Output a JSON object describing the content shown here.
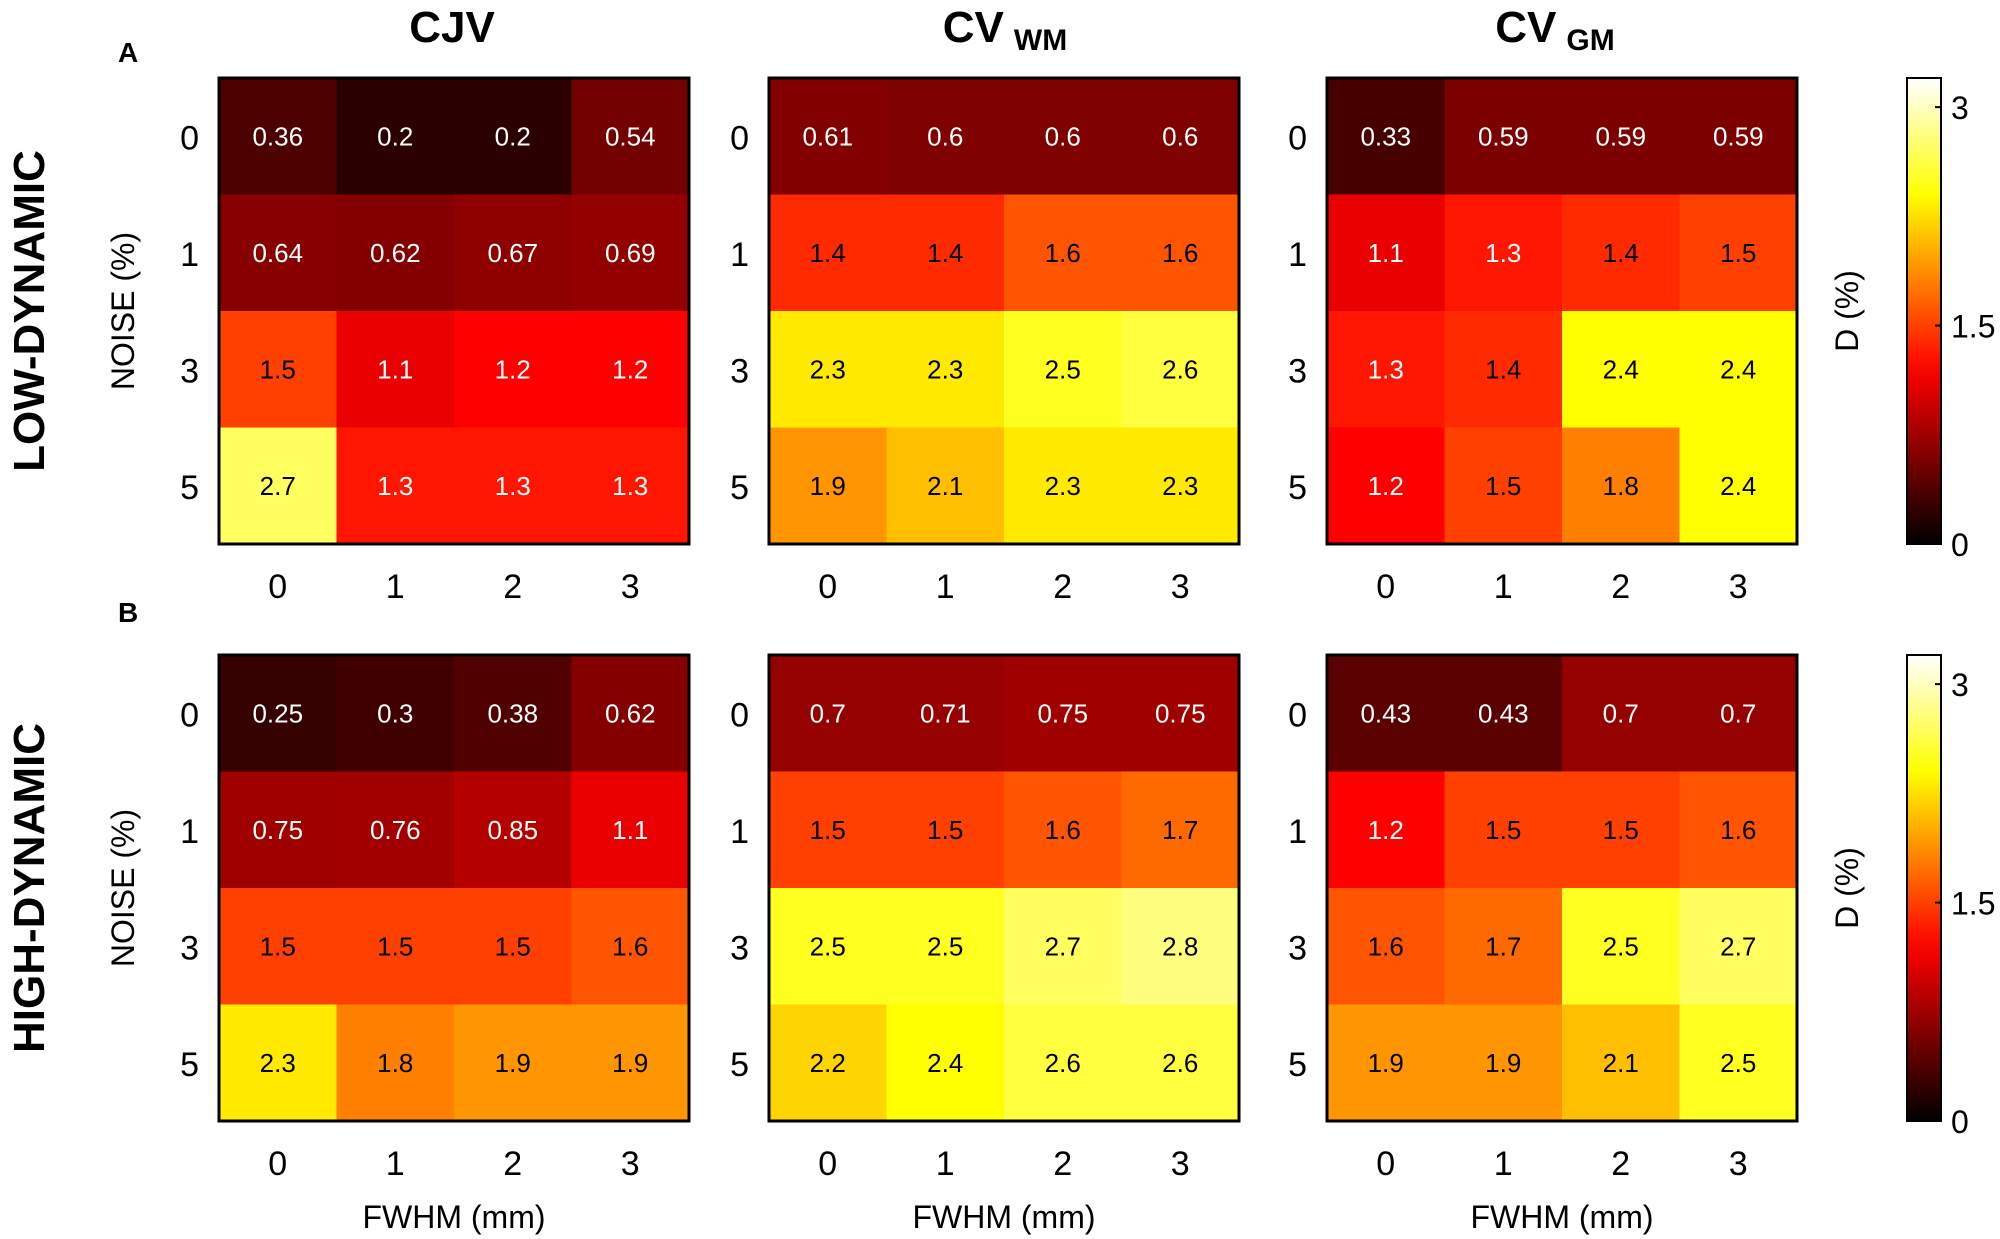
{
  "chart_data": {
    "type": "heatmap",
    "column_titles": [
      {
        "main": "CJV",
        "sub": ""
      },
      {
        "main": "CV",
        "sub": "WM"
      },
      {
        "main": "CV",
        "sub": "GM"
      }
    ],
    "panels": [
      {
        "letter": "A",
        "row_label": "LOW-DYNAMIC",
        "colorbar_label": "D (%)",
        "colorbar_ticks": [
          "3",
          "1.5",
          "0"
        ]
      },
      {
        "letter": "B",
        "row_label": "HIGH-DYNAMIC",
        "colorbar_label": "D (%)",
        "colorbar_ticks": [
          "3",
          "1.5",
          "0"
        ]
      }
    ],
    "xlabel": "FWHM (mm)",
    "ylabel": "NOISE (%)",
    "x_categories": [
      "0",
      "1",
      "2",
      "3"
    ],
    "y_categories": [
      "0",
      "1",
      "3",
      "5"
    ],
    "color_range": [
      0,
      3.2
    ],
    "colormap": "hot",
    "charts": [
      {
        "title": "CJV",
        "panel": "A",
        "cells": [
          [
            "0.36",
            "0.2",
            "0.2",
            "0.54"
          ],
          [
            "0.64",
            "0.62",
            "0.67",
            "0.69"
          ],
          [
            "1.5",
            "1.1",
            "1.2",
            "1.2"
          ],
          [
            "2.7",
            "1.3",
            "1.3",
            "1.3"
          ]
        ]
      },
      {
        "title": "CV WM",
        "panel": "A",
        "cells": [
          [
            "0.61",
            "0.6",
            "0.6",
            "0.6"
          ],
          [
            "1.4",
            "1.4",
            "1.6",
            "1.6"
          ],
          [
            "2.3",
            "2.3",
            "2.5",
            "2.6"
          ],
          [
            "1.9",
            "2.1",
            "2.3",
            "2.3"
          ]
        ]
      },
      {
        "title": "CV GM",
        "panel": "A",
        "cells": [
          [
            "0.33",
            "0.59",
            "0.59",
            "0.59"
          ],
          [
            "1.1",
            "1.3",
            "1.4",
            "1.5"
          ],
          [
            "1.3",
            "1.4",
            "2.4",
            "2.4"
          ],
          [
            "1.2",
            "1.5",
            "1.8",
            "2.4"
          ]
        ]
      },
      {
        "title": "CJV",
        "panel": "B",
        "cells": [
          [
            "0.25",
            "0.3",
            "0.38",
            "0.62"
          ],
          [
            "0.75",
            "0.76",
            "0.85",
            "1.1"
          ],
          [
            "1.5",
            "1.5",
            "1.5",
            "1.6"
          ],
          [
            "2.3",
            "1.8",
            "1.9",
            "1.9"
          ]
        ]
      },
      {
        "title": "CV WM",
        "panel": "B",
        "cells": [
          [
            "0.7",
            "0.71",
            "0.75",
            "0.75"
          ],
          [
            "1.5",
            "1.5",
            "1.6",
            "1.7"
          ],
          [
            "2.5",
            "2.5",
            "2.7",
            "2.8"
          ],
          [
            "2.2",
            "2.4",
            "2.6",
            "2.6"
          ]
        ]
      },
      {
        "title": "CV GM",
        "panel": "B",
        "cells": [
          [
            "0.43",
            "0.43",
            "0.7",
            "0.7"
          ],
          [
            "1.2",
            "1.5",
            "1.5",
            "1.6"
          ],
          [
            "1.6",
            "1.7",
            "2.5",
            "2.7"
          ],
          [
            "1.9",
            "1.9",
            "2.1",
            "2.5"
          ]
        ]
      }
    ]
  }
}
